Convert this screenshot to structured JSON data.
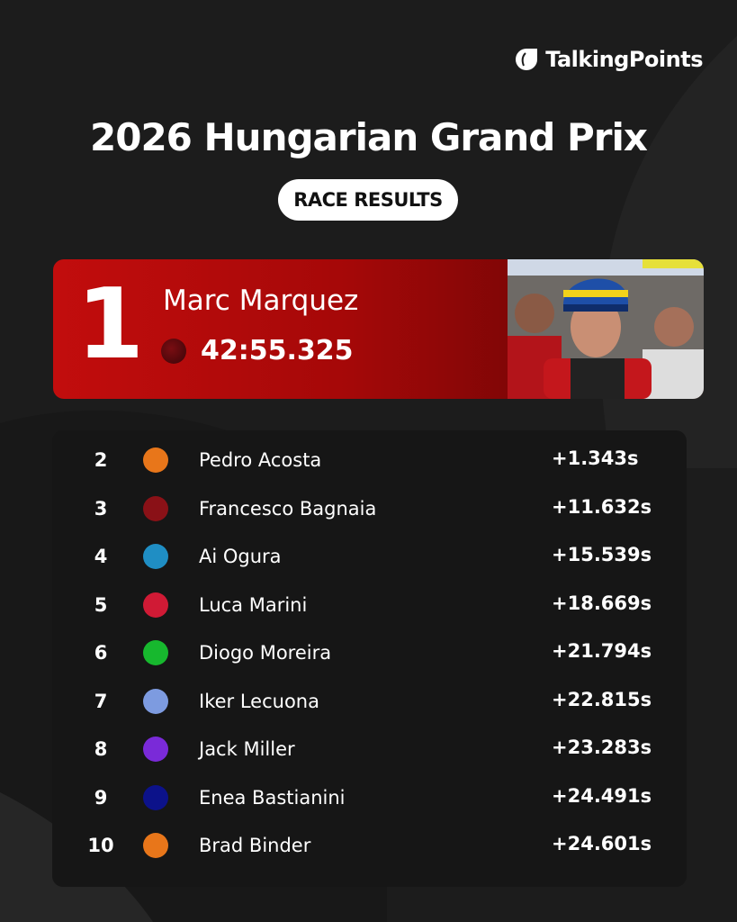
{
  "brand": "TalkingPoints",
  "title": "2026 Hungarian Grand Prix",
  "badge": "RACE RESULTS",
  "winner": {
    "position": 1,
    "name": "Marc Marquez",
    "time": "42:55.325",
    "color": "#7a0d12"
  },
  "results": [
    {
      "position": 2,
      "name": "Pedro Acosta",
      "gap": "+1.343s",
      "color": "#e8761a"
    },
    {
      "position": 3,
      "name": "Francesco Bagnaia",
      "gap": "+11.632s",
      "color": "#8a1117"
    },
    {
      "position": 4,
      "name": "Ai Ogura",
      "gap": "+15.539s",
      "color": "#1f8ec4"
    },
    {
      "position": 5,
      "name": "Luca Marini",
      "gap": "+18.669s",
      "color": "#d01a35"
    },
    {
      "position": 6,
      "name": "Diogo Moreira",
      "gap": "+21.794s",
      "color": "#17b82e"
    },
    {
      "position": 7,
      "name": "Iker Lecuona",
      "gap": "+22.815s",
      "color": "#7d9be0"
    },
    {
      "position": 8,
      "name": "Jack Miller",
      "gap": "+23.283s",
      "color": "#7a2ad8"
    },
    {
      "position": 9,
      "name": "Enea Bastianini",
      "gap": "+24.491s",
      "color": "#0c128a"
    },
    {
      "position": 10,
      "name": "Brad Binder",
      "gap": "+24.601s",
      "color": "#e8761a"
    }
  ]
}
